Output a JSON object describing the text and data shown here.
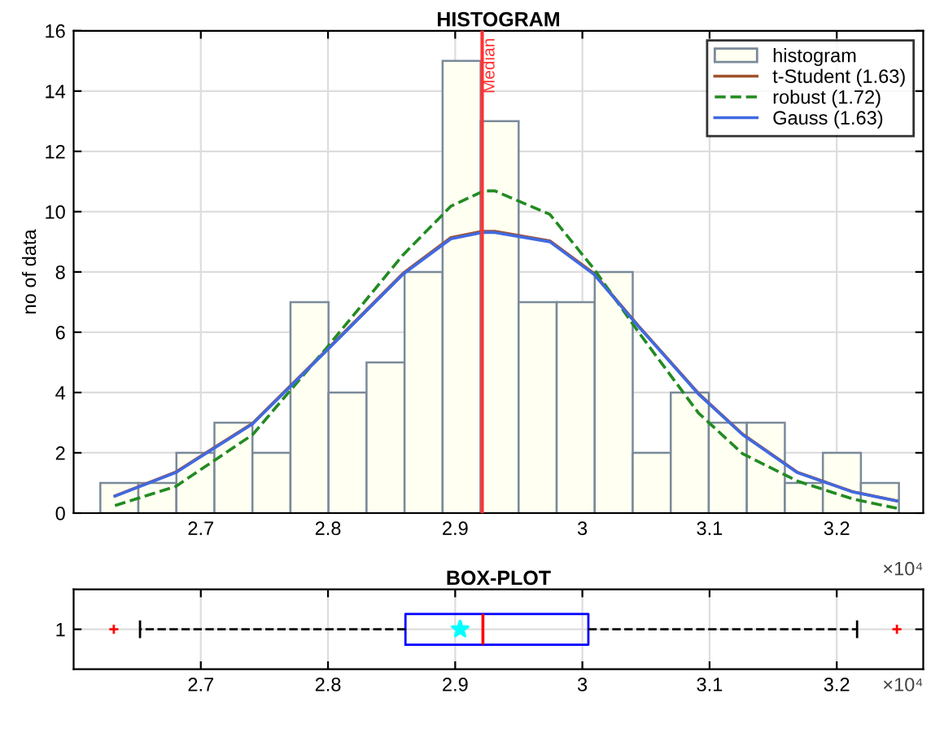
{
  "chart_data": [
    {
      "type": "histogram",
      "title": "HISTOGRAM",
      "ylabel": "no of data",
      "bins": [
        2.621,
        2.6509,
        2.6808,
        2.7107,
        2.7406,
        2.7705,
        2.8004,
        2.8303,
        2.8602,
        2.8901,
        2.92,
        2.9499,
        2.9798,
        3.0097,
        3.0396,
        3.0695,
        3.0994,
        3.1293,
        3.1592,
        3.1891,
        3.219,
        3.2489
      ],
      "series": [
        {
          "name": "histogram",
          "type": "histogram",
          "color": "#fffff2",
          "values": [
            1,
            1,
            2,
            3,
            2,
            7,
            4,
            5,
            8,
            15,
            13,
            7,
            7,
            8,
            2,
            4,
            3,
            3,
            1,
            2,
            1
          ]
        },
        {
          "name": "t-Student (1.63)",
          "type": "line",
          "color": "#a0522d",
          "line_style": "solid",
          "x": [
            2.6325,
            2.6801,
            2.7407,
            2.7991,
            2.8589,
            2.8966,
            2.9212,
            2.9312,
            2.9744,
            3.0091,
            3.0437,
            3.0913,
            3.126,
            3.1692,
            3.2126,
            3.2472
          ],
          "values": [
            0.57,
            1.36,
            2.98,
            5.42,
            7.95,
            9.14,
            9.35,
            9.35,
            9.03,
            7.95,
            6.23,
            3.97,
            2.62,
            1.35,
            0.71,
            0.41
          ]
        },
        {
          "name": "robust (1.72)",
          "type": "line",
          "color": "#228b22",
          "line_style": "dashed",
          "x": [
            2.6325,
            2.6801,
            2.7407,
            2.7991,
            2.8589,
            2.8966,
            2.9225,
            2.9312,
            2.9744,
            3.0091,
            3.0437,
            3.0913,
            3.126,
            3.1692,
            3.2126,
            3.2472
          ],
          "values": [
            0.25,
            0.88,
            2.6,
            5.49,
            8.56,
            10.18,
            10.69,
            10.69,
            9.91,
            8.1,
            6.03,
            3.32,
            1.97,
            1.06,
            0.47,
            0.16
          ]
        },
        {
          "name": "Gauss (1.63)",
          "type": "line",
          "color": "#4169e1",
          "line_style": "solid",
          "x": [
            2.6325,
            2.6801,
            2.7407,
            2.7991,
            2.8589,
            2.8966,
            2.9212,
            2.9312,
            2.9744,
            3.0091,
            3.0437,
            3.0913,
            3.126,
            3.1692,
            3.2126,
            3.2472
          ],
          "values": [
            0.56,
            1.34,
            2.96,
            5.4,
            7.92,
            9.1,
            9.31,
            9.31,
            9.0,
            7.92,
            6.21,
            3.95,
            2.6,
            1.34,
            0.7,
            0.4
          ]
        }
      ],
      "ref_lines": [
        {
          "axis": "x",
          "value": 2.9212,
          "label": "Median",
          "color": "#ff3333"
        }
      ],
      "xlim": [
        2.6,
        3.268
      ],
      "xticks": [
        2.7,
        2.8,
        2.9,
        3,
        3.1,
        3.2
      ],
      "ylim": [
        0,
        16
      ],
      "yticks": [
        0,
        2,
        4,
        6,
        8,
        10,
        12,
        14,
        16
      ],
      "annotations": [
        "×10⁴"
      ],
      "grid": true,
      "legend": "top right"
    },
    {
      "type": "box",
      "title": "BOX-PLOT",
      "orientation": "horizontal",
      "categories": [
        "1"
      ],
      "color": "#0000ff",
      "boxes": [
        {
          "low": 2.6522,
          "q1": 2.8609,
          "median": 2.9218,
          "q3": 3.0047,
          "high": 3.216,
          "mean": 2.9039,
          "outliers": [
            2.6316,
            3.2473
          ]
        }
      ],
      "xlim": [
        2.6,
        3.268
      ],
      "xticks": [
        2.7,
        2.8,
        2.9,
        3,
        3.1,
        3.2
      ],
      "annotations": [
        "×10⁴"
      ],
      "grid": true
    }
  ]
}
